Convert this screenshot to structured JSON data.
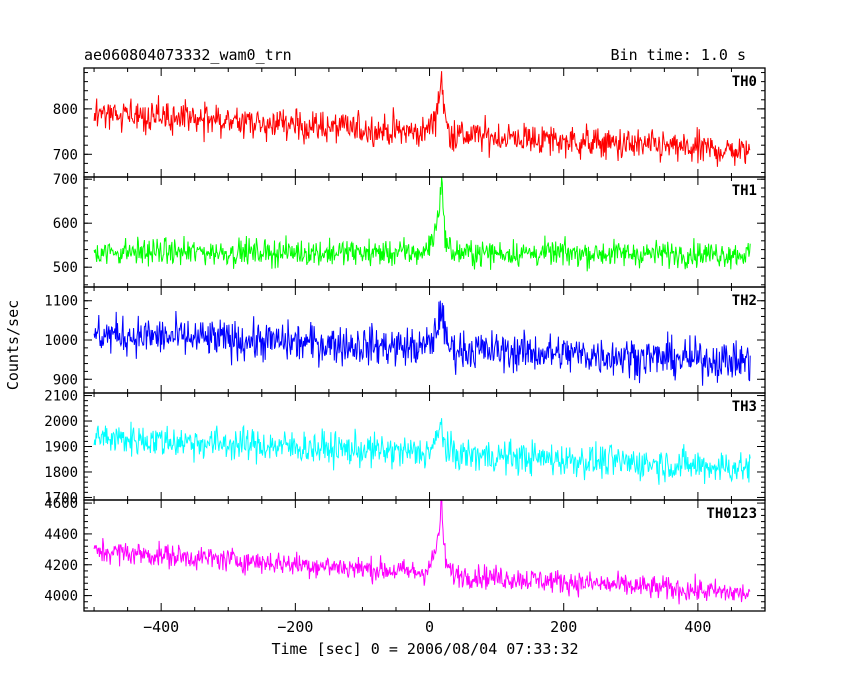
{
  "header": {
    "title": "ae060804073332_wam0_trn",
    "bin_time": "Bin time: 1.0 s"
  },
  "chart_data": {
    "type": "line",
    "title": "ae060804073332_wam0_trn",
    "xlabel": "Time [sec] 0 = 2006/08/04 07:33:32",
    "ylabel": "Counts/sec",
    "xlim": [
      -515,
      500
    ],
    "x_ticks": [
      -400,
      -200,
      0,
      200,
      400
    ],
    "x_tick_labels": [
      "−400",
      "−200",
      "0",
      "200",
      "400"
    ],
    "bin_size": 1.0,
    "x_range": [
      -500,
      478
    ],
    "burst_peak_time": 18,
    "grid": false,
    "legend": "none",
    "panels": [
      {
        "name": "TH0",
        "color": "#ff0000",
        "ylim": [
          650,
          890
        ],
        "y_ticks": [
          700,
          800
        ],
        "y_tick_labels": [
          "700",
          "800"
        ],
        "baseline_start": 790,
        "baseline_end": 705,
        "noise": 30,
        "burst_peak": 880,
        "clip": false
      },
      {
        "name": "TH1",
        "color": "#00ff00",
        "ylim": [
          455,
          705
        ],
        "y_ticks": [
          500,
          600,
          700
        ],
        "y_tick_labels": [
          "500",
          "600",
          "700"
        ],
        "baseline_start": 535,
        "baseline_end": 530,
        "noise": 25,
        "burst_peak": 705,
        "clip": false
      },
      {
        "name": "TH2",
        "color": "#0000ff",
        "ylim": [
          865,
          1135
        ],
        "y_ticks": [
          900,
          1000,
          1100
        ],
        "y_tick_labels": [
          "900",
          "1000",
          "1100"
        ],
        "baseline_start": 1015,
        "baseline_end": 945,
        "noise": 42,
        "burst_peak": 1100,
        "clip": false
      },
      {
        "name": "TH3",
        "color": "#00ffff",
        "ylim": [
          1690,
          2110
        ],
        "y_ticks": [
          1700,
          1800,
          1900,
          2000,
          2100
        ],
        "y_tick_labels": [
          "1700",
          "1800",
          "1900",
          "2000",
          "2100"
        ],
        "baseline_start": 1935,
        "baseline_end": 1815,
        "noise": 55,
        "burst_peak": 2000,
        "clip": true
      },
      {
        "name": "TH0123",
        "color": "#ff00ff",
        "ylim": [
          3900,
          4620
        ],
        "y_ticks": [
          4000,
          4200,
          4400,
          4600
        ],
        "y_tick_labels": [
          "4000",
          "4200",
          "4400",
          "4600"
        ],
        "baseline_start": 4290,
        "baseline_end": 4010,
        "noise": 65,
        "burst_peak": 4600,
        "clip": false
      }
    ]
  }
}
